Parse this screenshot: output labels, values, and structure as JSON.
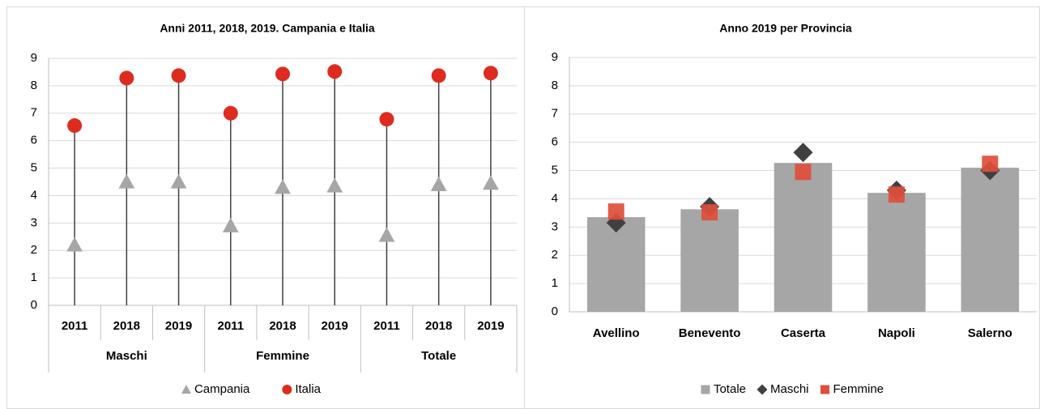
{
  "chart_data": [
    {
      "type": "dot",
      "title": "Anni 2011, 2018, 2019. Campania e Italia",
      "categories": [
        "2011",
        "2018",
        "2019",
        "2011",
        "2018",
        "2019",
        "2011",
        "2018",
        "2019"
      ],
      "groups": [
        "Maschi",
        "Femmine",
        "Totale"
      ],
      "series": [
        {
          "name": "Campania",
          "color": "#a6a6a6",
          "marker": "triangle",
          "values": [
            2.2,
            4.5,
            4.5,
            2.9,
            4.3,
            4.35,
            2.55,
            4.4,
            4.45
          ]
        },
        {
          "name": "Italia",
          "color": "#dd2c1f",
          "marker": "circle",
          "values": [
            6.55,
            8.28,
            8.37,
            7.0,
            8.43,
            8.52,
            6.78,
            8.37,
            8.46
          ]
        }
      ],
      "drop_lines": true,
      "ylim": [
        0,
        9
      ],
      "yticks": [
        0,
        1,
        2,
        3,
        4,
        5,
        6,
        7,
        8,
        9
      ],
      "grid": true,
      "legend": "bottom"
    },
    {
      "type": "bar",
      "title": "Anno 2019 per Provincia",
      "categories": [
        "Avellino",
        "Benevento",
        "Caserta",
        "Napoli",
        "Salerno"
      ],
      "series": [
        {
          "name": "Totale",
          "color": "#a6a6a6",
          "marker": "bar",
          "values": [
            3.35,
            3.63,
            5.27,
            4.21,
            5.1
          ]
        },
        {
          "name": "Maschi",
          "color": "#404040",
          "marker": "diamond",
          "values": [
            3.15,
            3.72,
            5.64,
            4.3,
            5.0
          ]
        },
        {
          "name": "Femmine",
          "color": "#de4e3a",
          "marker": "square",
          "values": [
            3.55,
            3.52,
            4.95,
            4.15,
            5.24
          ]
        }
      ],
      "ylim": [
        0,
        9
      ],
      "yticks": [
        0,
        1,
        2,
        3,
        4,
        5,
        6,
        7,
        8,
        9
      ],
      "grid": true,
      "legend": "bottom"
    }
  ]
}
